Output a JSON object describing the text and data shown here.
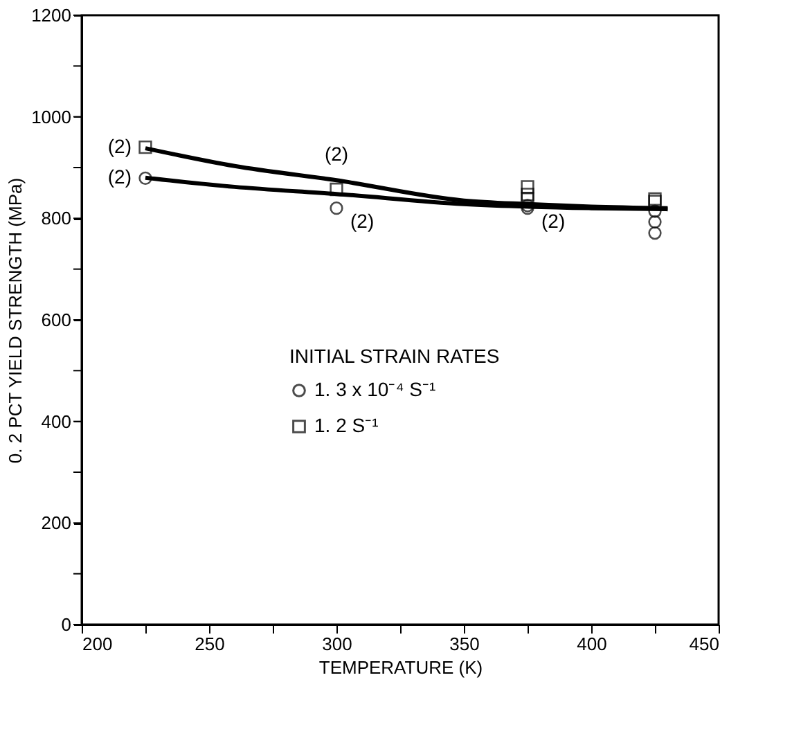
{
  "chart_data": {
    "type": "scatter",
    "xlabel": "TEMPERATURE (K)",
    "ylabel": "0. 2 PCT YIELD STRENGTH (MPa)",
    "legend_title": "INITIAL STRAIN RATES",
    "legend": "left",
    "xlim": [
      200,
      450
    ],
    "ylim": [
      0,
      1200
    ],
    "xticks": [
      200,
      {
        "value": 225,
        "label": null
      },
      250,
      {
        "value": 275,
        "label": null
      },
      300,
      {
        "value": 325,
        "label": null
      },
      350,
      {
        "value": 375,
        "label": null
      },
      400,
      {
        "value": 425,
        "label": null
      },
      450
    ],
    "yticks": [
      0,
      {
        "value": 100,
        "label": null
      },
      200,
      {
        "value": 300,
        "label": null
      },
      400,
      {
        "value": 500,
        "label": null
      },
      600,
      {
        "value": 700,
        "label": null
      },
      800,
      {
        "value": 900,
        "label": null
      },
      1000,
      {
        "value": 1100,
        "label": null
      },
      1200
    ],
    "grid": false,
    "series": [
      {
        "name": "1. 3 x 10⁻⁴ S⁻¹",
        "marker": "circle",
        "color": "#000000",
        "x": [
          225,
          300,
          375,
          375,
          425,
          425,
          425
        ],
        "values": [
          879,
          820,
          825,
          820,
          814,
          793,
          771
        ]
      },
      {
        "name": "1. 2 S⁻¹",
        "marker": "square",
        "color": "#000000",
        "x": [
          225,
          300,
          375,
          375,
          375,
          425,
          425
        ],
        "values": [
          940,
          857,
          862,
          847,
          838,
          838,
          833
        ]
      },
      {
        "type": "line",
        "color": "#000000",
        "line_style": "solid",
        "x": [
          225,
          260,
          300,
          350,
          400,
          430
        ],
        "values": [
          880,
          862,
          848,
          828,
          820,
          818
        ]
      },
      {
        "type": "line",
        "color": "#000000",
        "line_style": "solid",
        "x": [
          225,
          260,
          300,
          350,
          375,
          400,
          430
        ],
        "values": [
          938,
          903,
          875,
          835,
          828,
          823,
          820
        ]
      }
    ],
    "annotations": [
      {
        "text": "(2)",
        "x": 225,
        "y": 940
      },
      {
        "text": "(2)",
        "x": 225,
        "y": 879
      },
      {
        "text": "(2)",
        "x": 300,
        "y": 875
      },
      {
        "text": "(2)",
        "x": 300,
        "y": 820
      },
      {
        "text": "(2)",
        "x": 375,
        "y": 820
      }
    ]
  }
}
